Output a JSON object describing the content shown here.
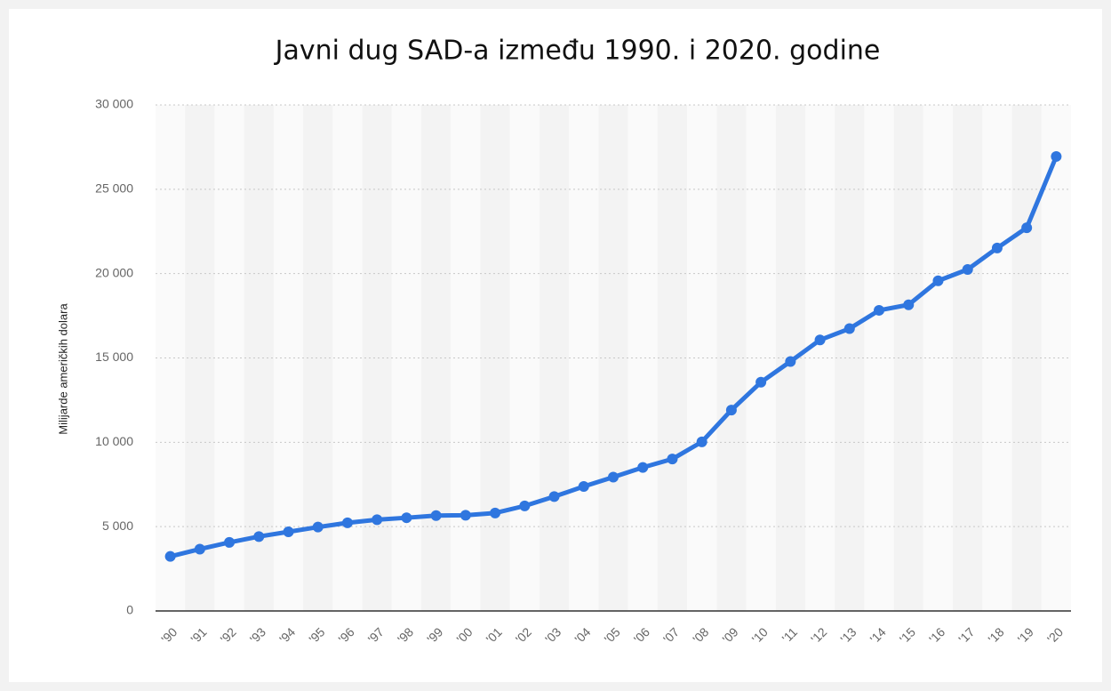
{
  "chart_data": {
    "type": "line",
    "title": "Javni dug SAD-a između 1990. i 2020. godine",
    "ylabel": "Milijarde američkih dolara",
    "categories": [
      "'90",
      "'91",
      "'92",
      "'93",
      "'94",
      "'95",
      "'96",
      "'97",
      "'98",
      "'99",
      "'00",
      "'01",
      "'02",
      "'03",
      "'04",
      "'05",
      "'06",
      "'07",
      "'08",
      "'09",
      "'10",
      "'11",
      "'12",
      "'13",
      "'14",
      "'15",
      "'16",
      "'17",
      "'18",
      "'19",
      "'20"
    ],
    "series": [
      {
        "name": "Javni dug",
        "color": "#2f76df",
        "values": [
          3233,
          3665,
          4065,
          4411,
          4693,
          4974,
          5225,
          5413,
          5526,
          5656,
          5674,
          5807,
          6228,
          6783,
          7379,
          7933,
          8507,
          9008,
          10025,
          11910,
          13562,
          14790,
          16066,
          16738,
          17824,
          18151,
          19573,
          20245,
          21516,
          22719,
          26945
        ]
      }
    ],
    "ylim": [
      0,
      30000
    ],
    "yticks": [
      {
        "value": 0,
        "label": "0"
      },
      {
        "value": 5000,
        "label": "5 000"
      },
      {
        "value": 10000,
        "label": "10 000"
      },
      {
        "value": 15000,
        "label": "15 000"
      },
      {
        "value": 20000,
        "label": "20 000"
      },
      {
        "value": 25000,
        "label": "25 000"
      },
      {
        "value": 30000,
        "label": "30 000"
      }
    ],
    "grid": true
  }
}
